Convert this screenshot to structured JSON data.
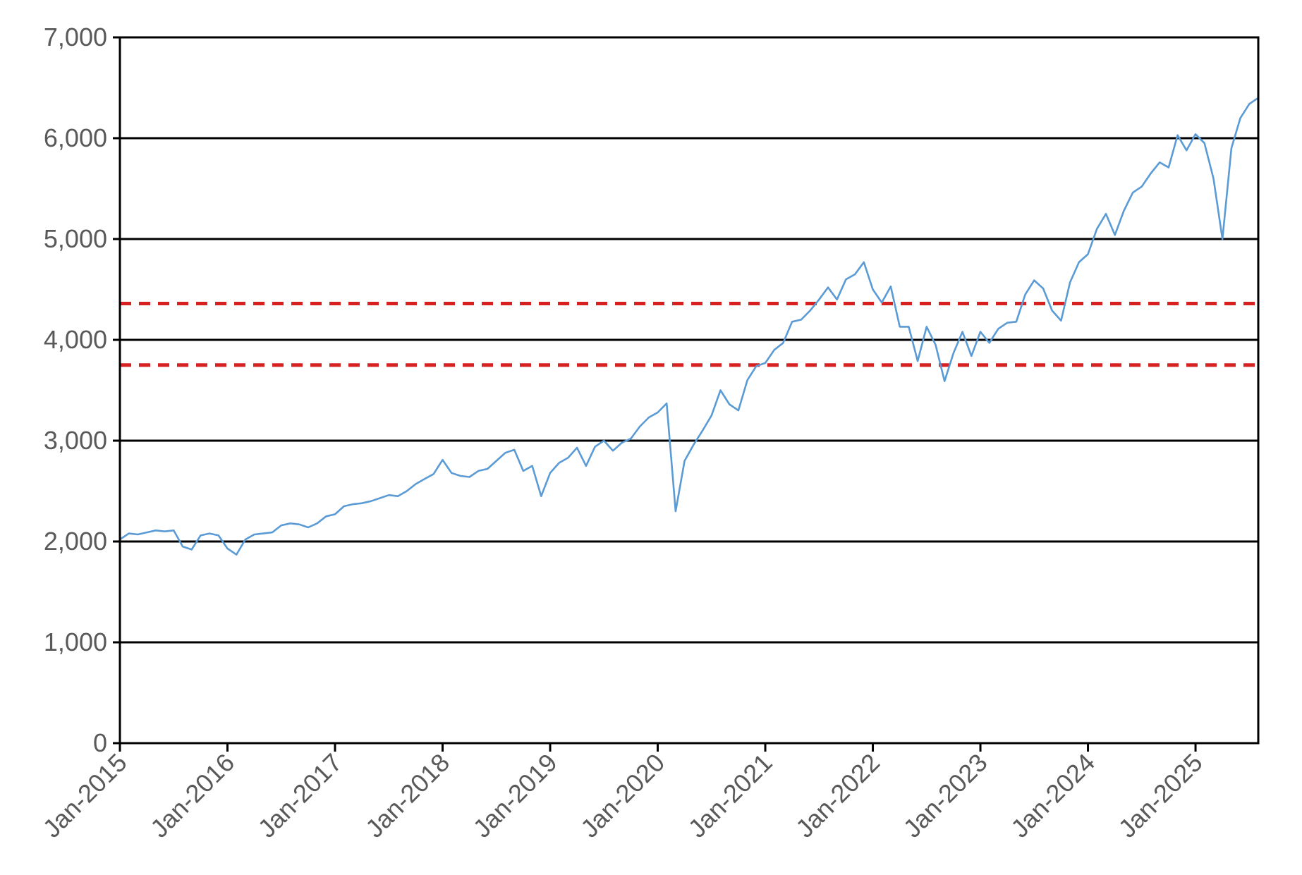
{
  "chart_data": {
    "type": "line",
    "title": "",
    "xlabel": "",
    "ylabel": "",
    "ylim": [
      0,
      7000
    ],
    "xlim": [
      "2015-01",
      "2025-08"
    ],
    "y_ticks": [
      0,
      1000,
      2000,
      3000,
      4000,
      5000,
      6000,
      7000
    ],
    "y_tick_labels": [
      "0",
      "1,000",
      "2,000",
      "3,000",
      "4,000",
      "5,000",
      "6,000",
      "7,000"
    ],
    "x_tick_labels": [
      "Jan-2015",
      "Jan-2016",
      "Jan-2017",
      "Jan-2018",
      "Jan-2019",
      "Jan-2020",
      "Jan-2021",
      "Jan-2022",
      "Jan-2023",
      "Jan-2024",
      "Jan-2025"
    ],
    "x_ticks": [
      "2015-01",
      "2016-01",
      "2017-01",
      "2018-01",
      "2019-01",
      "2020-01",
      "2021-01",
      "2022-01",
      "2023-01",
      "2024-01",
      "2025-01"
    ],
    "grid": "horizontal",
    "legend": "none",
    "series": [
      {
        "color": "#5b9bd5",
        "points": [
          [
            "2015-01",
            2020
          ],
          [
            "2015-02",
            2080
          ],
          [
            "2015-03",
            2070
          ],
          [
            "2015-04",
            2090
          ],
          [
            "2015-05",
            2110
          ],
          [
            "2015-06",
            2100
          ],
          [
            "2015-07",
            2110
          ],
          [
            "2015-08",
            1950
          ],
          [
            "2015-09",
            1920
          ],
          [
            "2015-10",
            2060
          ],
          [
            "2015-11",
            2080
          ],
          [
            "2015-12",
            2060
          ],
          [
            "2016-01",
            1930
          ],
          [
            "2016-02",
            1870
          ],
          [
            "2016-03",
            2020
          ],
          [
            "2016-04",
            2070
          ],
          [
            "2016-05",
            2080
          ],
          [
            "2016-06",
            2090
          ],
          [
            "2016-07",
            2160
          ],
          [
            "2016-08",
            2180
          ],
          [
            "2016-09",
            2170
          ],
          [
            "2016-10",
            2140
          ],
          [
            "2016-11",
            2180
          ],
          [
            "2016-12",
            2250
          ],
          [
            "2017-01",
            2270
          ],
          [
            "2017-02",
            2350
          ],
          [
            "2017-03",
            2370
          ],
          [
            "2017-04",
            2380
          ],
          [
            "2017-05",
            2400
          ],
          [
            "2017-06",
            2430
          ],
          [
            "2017-07",
            2460
          ],
          [
            "2017-08",
            2450
          ],
          [
            "2017-09",
            2500
          ],
          [
            "2017-10",
            2570
          ],
          [
            "2017-11",
            2620
          ],
          [
            "2017-12",
            2670
          ],
          [
            "2018-01",
            2810
          ],
          [
            "2018-02",
            2680
          ],
          [
            "2018-03",
            2650
          ],
          [
            "2018-04",
            2640
          ],
          [
            "2018-05",
            2700
          ],
          [
            "2018-06",
            2720
          ],
          [
            "2018-07",
            2800
          ],
          [
            "2018-08",
            2880
          ],
          [
            "2018-09",
            2910
          ],
          [
            "2018-10",
            2700
          ],
          [
            "2018-11",
            2750
          ],
          [
            "2018-12",
            2450
          ],
          [
            "2019-01",
            2680
          ],
          [
            "2019-02",
            2780
          ],
          [
            "2019-03",
            2830
          ],
          [
            "2019-04",
            2930
          ],
          [
            "2019-05",
            2750
          ],
          [
            "2019-06",
            2940
          ],
          [
            "2019-07",
            3000
          ],
          [
            "2019-08",
            2900
          ],
          [
            "2019-09",
            2980
          ],
          [
            "2019-10",
            3020
          ],
          [
            "2019-11",
            3140
          ],
          [
            "2019-12",
            3230
          ],
          [
            "2020-01",
            3280
          ],
          [
            "2020-02",
            3370
          ],
          [
            "2020-03",
            2300
          ],
          [
            "2020-04",
            2800
          ],
          [
            "2020-05",
            2960
          ],
          [
            "2020-06",
            3100
          ],
          [
            "2020-07",
            3250
          ],
          [
            "2020-08",
            3500
          ],
          [
            "2020-09",
            3360
          ],
          [
            "2020-10",
            3300
          ],
          [
            "2020-11",
            3600
          ],
          [
            "2020-12",
            3740
          ],
          [
            "2021-01",
            3770
          ],
          [
            "2021-02",
            3900
          ],
          [
            "2021-03",
            3970
          ],
          [
            "2021-04",
            4180
          ],
          [
            "2021-05",
            4200
          ],
          [
            "2021-06",
            4290
          ],
          [
            "2021-07",
            4400
          ],
          [
            "2021-08",
            4520
          ],
          [
            "2021-09",
            4400
          ],
          [
            "2021-10",
            4600
          ],
          [
            "2021-11",
            4650
          ],
          [
            "2021-12",
            4770
          ],
          [
            "2022-01",
            4500
          ],
          [
            "2022-02",
            4370
          ],
          [
            "2022-03",
            4530
          ],
          [
            "2022-04",
            4130
          ],
          [
            "2022-05",
            4130
          ],
          [
            "2022-06",
            3790
          ],
          [
            "2022-07",
            4130
          ],
          [
            "2022-08",
            3950
          ],
          [
            "2022-09",
            3590
          ],
          [
            "2022-10",
            3870
          ],
          [
            "2022-11",
            4080
          ],
          [
            "2022-12",
            3840
          ],
          [
            "2023-01",
            4080
          ],
          [
            "2023-02",
            3970
          ],
          [
            "2023-03",
            4110
          ],
          [
            "2023-04",
            4170
          ],
          [
            "2023-05",
            4180
          ],
          [
            "2023-06",
            4450
          ],
          [
            "2023-07",
            4590
          ],
          [
            "2023-08",
            4510
          ],
          [
            "2023-09",
            4290
          ],
          [
            "2023-10",
            4190
          ],
          [
            "2023-11",
            4570
          ],
          [
            "2023-12",
            4770
          ],
          [
            "2024-01",
            4850
          ],
          [
            "2024-02",
            5100
          ],
          [
            "2024-03",
            5250
          ],
          [
            "2024-04",
            5040
          ],
          [
            "2024-05",
            5280
          ],
          [
            "2024-06",
            5460
          ],
          [
            "2024-07",
            5520
          ],
          [
            "2024-08",
            5650
          ],
          [
            "2024-09",
            5760
          ],
          [
            "2024-10",
            5710
          ],
          [
            "2024-11",
            6030
          ],
          [
            "2024-12",
            5880
          ],
          [
            "2025-01",
            6040
          ],
          [
            "2025-02",
            5950
          ],
          [
            "2025-03",
            5600
          ],
          [
            "2025-04",
            5000
          ],
          [
            "2025-05",
            5900
          ],
          [
            "2025-06",
            6200
          ],
          [
            "2025-07",
            6340
          ],
          [
            "2025-08",
            6400
          ]
        ]
      }
    ],
    "reference_lines": [
      {
        "y": 4360,
        "color": "#d72020",
        "style": "dashed"
      },
      {
        "y": 3750,
        "color": "#d72020",
        "style": "dashed"
      }
    ]
  }
}
